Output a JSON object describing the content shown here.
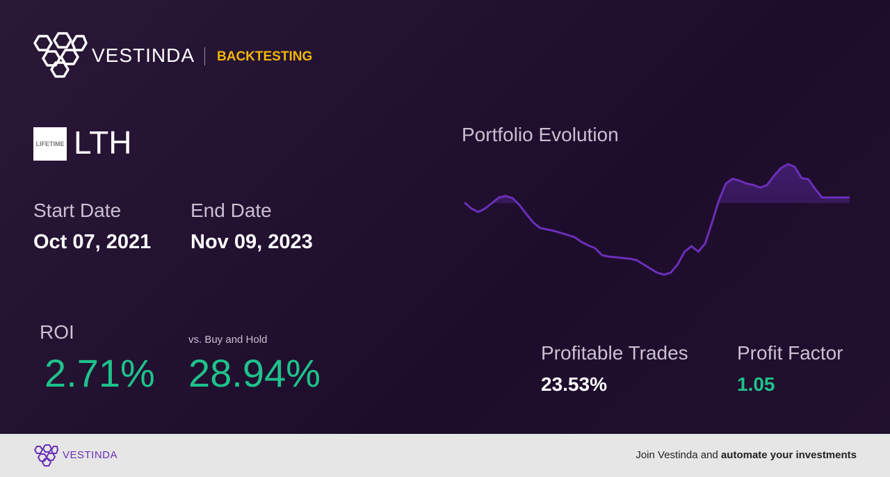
{
  "header": {
    "brand": "VESTINDA",
    "section": "BACKTESTING"
  },
  "ticker": {
    "logo_text": "LIFETIME",
    "symbol": "LTH"
  },
  "dates": {
    "start_label": "Start Date",
    "start": "Oct 07, 2021",
    "end_label": "End Date",
    "end": "Nov 09, 2023"
  },
  "metrics": {
    "roi_label": "ROI",
    "roi": "2.71%",
    "buy_hold_label": "vs. Buy and Hold",
    "buy_hold": "28.94%",
    "profitable_label": "Profitable Trades",
    "profitable": "23.53%",
    "factor_label": "Profit Factor",
    "factor": "1.05"
  },
  "chart_data": {
    "type": "line",
    "title": "Portfolio Evolution",
    "color": "#6a2fb8",
    "values": [
      0.3,
      -2.7,
      -4.4,
      -2.7,
      0,
      2.7,
      3.4,
      2.4,
      -1.0,
      -5.4,
      -9.5,
      -12.2,
      -12.9,
      -13.6,
      -14.6,
      -15.6,
      -16.7,
      -19.0,
      -20.7,
      -22.1,
      -25.5,
      -26.2,
      -26.5,
      -26.9,
      -27.2,
      -27.9,
      -29.9,
      -32.0,
      -34.0,
      -35.0,
      -34.0,
      -29.9,
      -23.8,
      -21.1,
      -23.8,
      -19.7,
      -9.5,
      1.4,
      9.5,
      11.9,
      10.9,
      9.5,
      8.8,
      7.5,
      8.8,
      13.3,
      17.0,
      19.0,
      17.7,
      12.2,
      11.6,
      6.8,
      2.7,
      2.7,
      2.7,
      2.7,
      2.7
    ]
  },
  "footer": {
    "brand": "VESTINDA",
    "cta": "Join Vestinda and ",
    "cta_bold": "automate your investments"
  }
}
